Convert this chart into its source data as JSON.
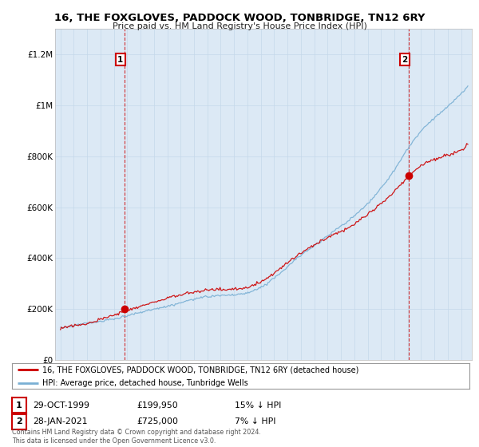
{
  "title": "16, THE FOXGLOVES, PADDOCK WOOD, TONBRIDGE, TN12 6RY",
  "subtitle": "Price paid vs. HM Land Registry's House Price Index (HPI)",
  "sale1_date": "29-OCT-1999",
  "sale1_price": 199950,
  "sale1_pct": "15% ↓ HPI",
  "sale2_date": "28-JAN-2021",
  "sale2_price": 725000,
  "sale2_pct": "7% ↓ HPI",
  "legend_line1": "16, THE FOXGLOVES, PADDOCK WOOD, TONBRIDGE, TN12 6RY (detached house)",
  "legend_line2": "HPI: Average price, detached house, Tunbridge Wells",
  "footer": "Contains HM Land Registry data © Crown copyright and database right 2024.\nThis data is licensed under the Open Government Licence v3.0.",
  "sale_color": "#cc0000",
  "hpi_color": "#7ab0d4",
  "background_color": "#ffffff",
  "plot_bg_color": "#dce9f5",
  "ylim": [
    0,
    1300000
  ],
  "yticks": [
    0,
    200000,
    400000,
    600000,
    800000,
    1000000,
    1200000
  ],
  "ytick_labels": [
    "£0",
    "£200K",
    "£400K",
    "£600K",
    "£800K",
    "£1M",
    "£1.2M"
  ],
  "sale1_year": 1999.79,
  "sale2_year": 2021.08,
  "xstart": 1995,
  "xend": 2025.5
}
